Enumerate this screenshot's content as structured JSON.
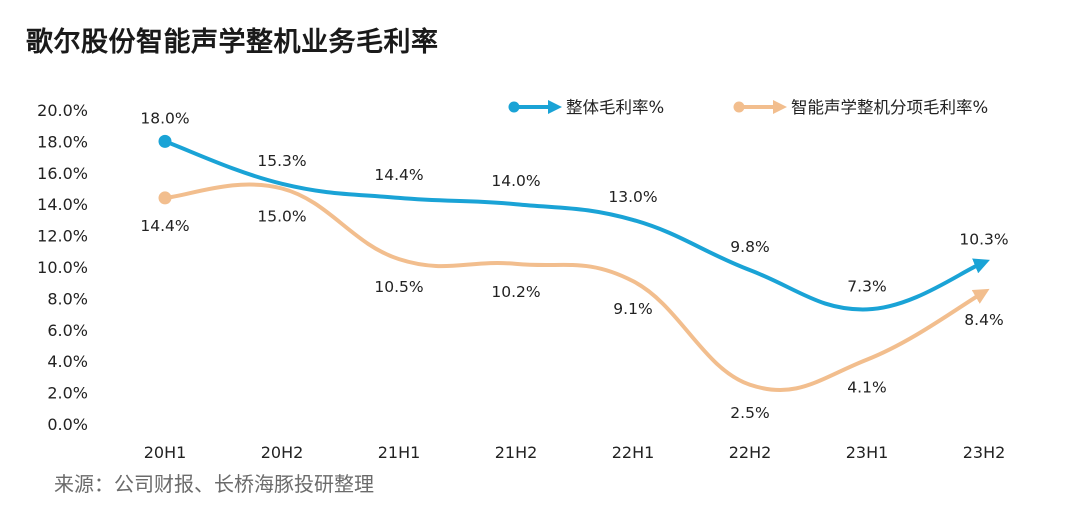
{
  "title": "歌尔股份智能声学整机业务毛利率",
  "source": "来源：公司财报、长桥海豚投研整理",
  "chart_data": {
    "type": "line",
    "categories": [
      "20H1",
      "20H2",
      "21H1",
      "21H2",
      "22H1",
      "22H2",
      "23H1",
      "23H2"
    ],
    "y_ticks": [
      "0.0%",
      "2.0%",
      "4.0%",
      "6.0%",
      "8.0%",
      "10.0%",
      "12.0%",
      "14.0%",
      "16.0%",
      "18.0%",
      "20.0%"
    ],
    "ylim": [
      0,
      20
    ],
    "series": [
      {
        "name": "整体毛利率%",
        "color": "#1aa3d6",
        "values": [
          18.0,
          15.3,
          14.4,
          14.0,
          13.0,
          9.8,
          7.3,
          10.3
        ],
        "labels": [
          "18.0%",
          "15.3%",
          "14.4%",
          "14.0%",
          "13.0%",
          "9.8%",
          "7.3%",
          "10.3%"
        ],
        "label_position": [
          "above",
          "above",
          "above",
          "above",
          "above",
          "above",
          "above",
          "above"
        ]
      },
      {
        "name": "智能声学整机分项毛利率%",
        "color": "#f2be8e",
        "values": [
          14.4,
          15.0,
          10.5,
          10.2,
          9.1,
          2.5,
          4.1,
          8.4
        ],
        "labels": [
          "14.4%",
          "15.0%",
          "10.5%",
          "10.2%",
          "9.1%",
          "2.5%",
          "4.1%",
          "8.4%"
        ],
        "label_position": [
          "below",
          "below",
          "below",
          "below",
          "below",
          "below",
          "below",
          "below"
        ]
      }
    ],
    "legend_position": "top-right",
    "grid": false,
    "xlabel": "",
    "ylabel": ""
  }
}
